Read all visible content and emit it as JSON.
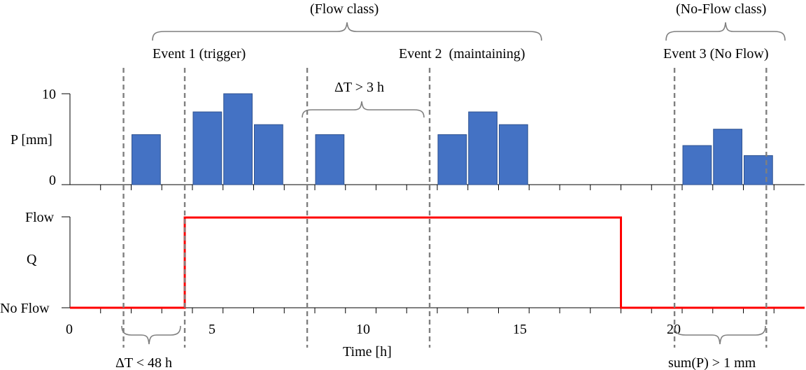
{
  "chart_data": [
    {
      "type": "bar",
      "panel": "precipitation",
      "ylabel": "P [mm]",
      "y_ticks": [
        "0",
        "10"
      ],
      "ylim": [
        0,
        10
      ],
      "bar_color": "#4472C4",
      "x": [
        2.5,
        4.5,
        5.5,
        6.5,
        8.5,
        12.5,
        13.5,
        14.5,
        20.5,
        21.5,
        22.5
      ],
      "values": [
        5.5,
        8.0,
        10.0,
        6.6,
        5.5,
        5.5,
        8.0,
        6.6,
        4.3,
        6.1,
        3.2
      ]
    },
    {
      "type": "line",
      "panel": "discharge",
      "ylabel": "Q",
      "y_categories": [
        "No Flow",
        "Flow"
      ],
      "line_color": "#FF0000",
      "x": [
        0,
        3.75,
        3.75,
        18,
        18,
        24
      ],
      "values": [
        0,
        0,
        1,
        1,
        0,
        0
      ],
      "xlabel": "Time  [h]",
      "x_ticks": [
        "0",
        "5",
        "10",
        "15",
        "20"
      ],
      "xlim": [
        0,
        24
      ]
    }
  ],
  "annotations": {
    "flow_class": "(Flow class)",
    "no_flow_class": "(No-Flow class)",
    "event1": "Event 1 (trigger)",
    "event2": "Event 2  (maintaining)",
    "event3": "Event 3 (No Flow)",
    "dt_gap": "ΔT > 3 h",
    "dt_lt": "ΔT < 48 h",
    "sum_p": "sum(P) > 1 mm"
  },
  "event_markers_h": [
    1.75,
    3.75,
    7.75,
    11.75,
    19.75,
    22.75
  ],
  "colors": {
    "bars": "#4472C4",
    "flow_line": "#FF0000",
    "markers": "#7f7f7f"
  }
}
